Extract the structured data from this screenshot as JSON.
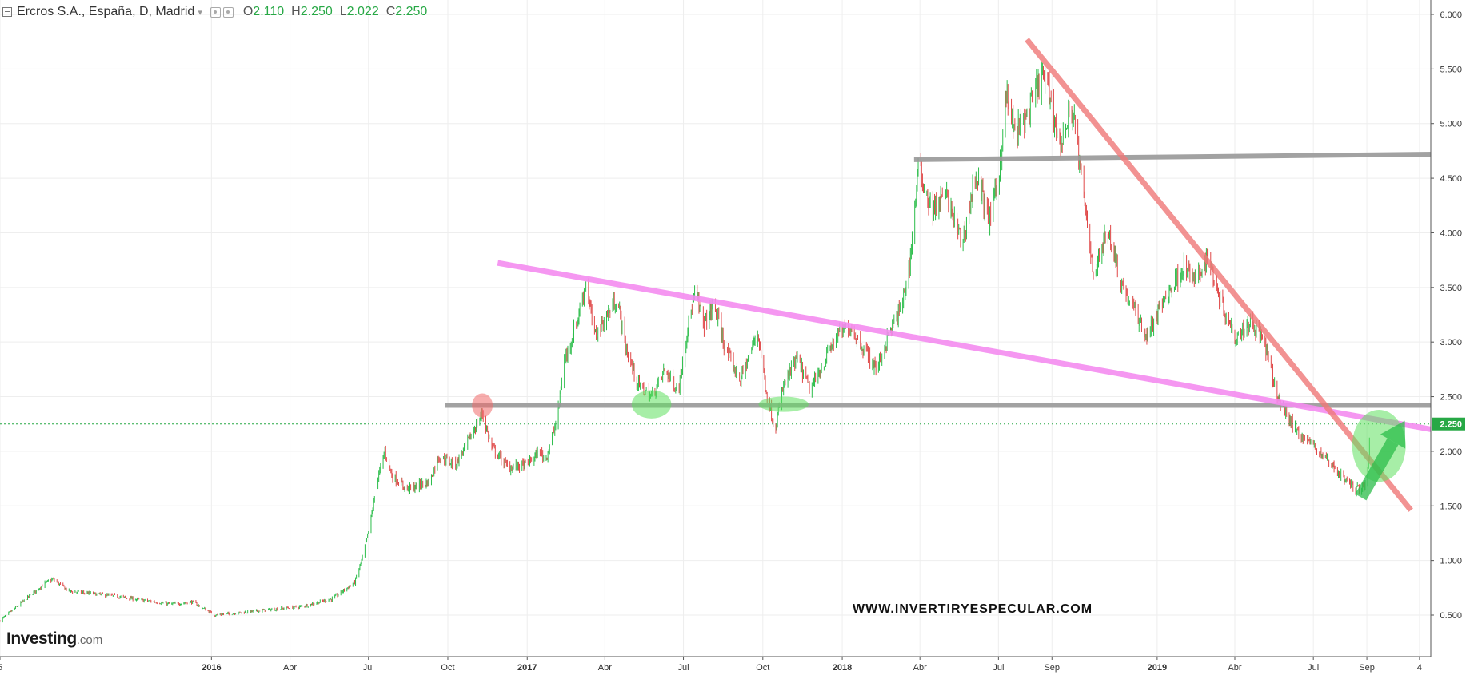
{
  "header": {
    "symbol": "Ercros S.A., España, D, Madrid",
    "open_label": "O",
    "open": "2.110",
    "high_label": "H",
    "high": "2.250",
    "low_label": "L",
    "low": "2.022",
    "close_label": "C",
    "close": "2.250"
  },
  "brand": {
    "name": "Investing",
    "suffix": ".com"
  },
  "watermark": "WWW.INVERTIRYESPECULAR.COM",
  "colors": {
    "up": "#2bbd4a",
    "down": "#e04848",
    "support": "#999999",
    "resistance_top": "#999999",
    "downtrend_main": "#f07878",
    "downtrend_magenta": "#f58cf0",
    "marker_red": "#f06a6a",
    "marker_green": "#5ee05e",
    "price_label_bg": "#27a845"
  },
  "chart_data": {
    "type": "candlestick",
    "title": "Ercros S.A., España, D, Madrid",
    "yaxis": {
      "side": "right",
      "ticks": [
        "6.000",
        "5.500",
        "5.000",
        "4.500",
        "4.000",
        "3.500",
        "3.000",
        "2.500",
        "2.000",
        "1.500",
        "1.000",
        "0.500"
      ],
      "range": [
        0.25,
        6.0
      ]
    },
    "xaxis": {
      "range": [
        "2015-05-01",
        "2019-11-15"
      ],
      "ticks": [
        {
          "label": "5",
          "date": "2015-05-01",
          "bold": false
        },
        {
          "label": "2016",
          "date": "2016-01-01",
          "bold": true
        },
        {
          "label": "Abr",
          "date": "2016-04-01",
          "bold": false
        },
        {
          "label": "Jul",
          "date": "2016-07-01",
          "bold": false
        },
        {
          "label": "Oct",
          "date": "2016-10-01",
          "bold": false
        },
        {
          "label": "2017",
          "date": "2017-01-01",
          "bold": true
        },
        {
          "label": "Abr",
          "date": "2017-04-01",
          "bold": false
        },
        {
          "label": "Jul",
          "date": "2017-07-01",
          "bold": false
        },
        {
          "label": "Oct",
          "date": "2017-10-01",
          "bold": false
        },
        {
          "label": "2018",
          "date": "2018-01-01",
          "bold": true
        },
        {
          "label": "Abr",
          "date": "2018-04-01",
          "bold": false
        },
        {
          "label": "Jul",
          "date": "2018-07-01",
          "bold": false
        },
        {
          "label": "Sep",
          "date": "2018-09-01",
          "bold": false
        },
        {
          "label": "2019",
          "date": "2019-01-01",
          "bold": true
        },
        {
          "label": "Abr",
          "date": "2019-04-01",
          "bold": false
        },
        {
          "label": "Jul",
          "date": "2019-07-01",
          "bold": false
        },
        {
          "label": "Sep",
          "date": "2019-09-01",
          "bold": false
        },
        {
          "label": "4",
          "date": "2019-11-01",
          "bold": false
        }
      ]
    },
    "last_price": 2.25,
    "last_price_label": "2.250",
    "path_note": "daily closes approximated by interpolation between these swing points",
    "price_path": [
      [
        "2015-05-01",
        0.45
      ],
      [
        "2015-06-20",
        0.78
      ],
      [
        "2015-07-01",
        0.83
      ],
      [
        "2015-07-20",
        0.72
      ],
      [
        "2015-09-15",
        0.67
      ],
      [
        "2015-11-15",
        0.6
      ],
      [
        "2015-12-10",
        0.62
      ],
      [
        "2016-01-05",
        0.5
      ],
      [
        "2016-02-01",
        0.52
      ],
      [
        "2016-04-15",
        0.58
      ],
      [
        "2016-05-20",
        0.65
      ],
      [
        "2016-06-01",
        0.72
      ],
      [
        "2016-06-15",
        0.8
      ],
      [
        "2016-06-25",
        1.05
      ],
      [
        "2016-07-02",
        1.3
      ],
      [
        "2016-07-12",
        1.75
      ],
      [
        "2016-07-20",
        2.0
      ],
      [
        "2016-07-28",
        1.78
      ],
      [
        "2016-08-15",
        1.65
      ],
      [
        "2016-09-10",
        1.72
      ],
      [
        "2016-09-20",
        1.95
      ],
      [
        "2016-10-10",
        1.88
      ],
      [
        "2016-10-25",
        2.1
      ],
      [
        "2016-11-10",
        2.35
      ],
      [
        "2016-11-20",
        2.05
      ],
      [
        "2016-12-10",
        1.85
      ],
      [
        "2017-01-01",
        1.88
      ],
      [
        "2017-01-15",
        2.0
      ],
      [
        "2017-01-22",
        1.92
      ],
      [
        "2017-02-05",
        2.3
      ],
      [
        "2017-02-12",
        2.8
      ],
      [
        "2017-02-28",
        3.2
      ],
      [
        "2017-03-10",
        3.55
      ],
      [
        "2017-03-20",
        3.05
      ],
      [
        "2017-04-15",
        3.4
      ],
      [
        "2017-04-25",
        2.95
      ],
      [
        "2017-05-10",
        2.6
      ],
      [
        "2017-05-25",
        2.5
      ],
      [
        "2017-06-10",
        2.75
      ],
      [
        "2017-06-25",
        2.55
      ],
      [
        "2017-07-05",
        3.1
      ],
      [
        "2017-07-15",
        3.45
      ],
      [
        "2017-07-25",
        3.15
      ],
      [
        "2017-08-05",
        3.35
      ],
      [
        "2017-08-20",
        2.9
      ],
      [
        "2017-09-05",
        2.65
      ],
      [
        "2017-09-25",
        3.1
      ],
      [
        "2017-10-05",
        2.55
      ],
      [
        "2017-10-15",
        2.2
      ],
      [
        "2017-10-25",
        2.6
      ],
      [
        "2017-11-10",
        2.85
      ],
      [
        "2017-11-25",
        2.55
      ],
      [
        "2017-12-10",
        2.8
      ],
      [
        "2017-12-25",
        3.05
      ],
      [
        "2018-01-10",
        3.15
      ],
      [
        "2018-01-25",
        2.95
      ],
      [
        "2018-02-10",
        2.75
      ],
      [
        "2018-02-25",
        3.1
      ],
      [
        "2018-03-10",
        3.3
      ],
      [
        "2018-03-20",
        3.7
      ],
      [
        "2018-03-30",
        4.6
      ],
      [
        "2018-04-15",
        4.2
      ],
      [
        "2018-05-01",
        4.35
      ],
      [
        "2018-05-20",
        3.9
      ],
      [
        "2018-06-05",
        4.55
      ],
      [
        "2018-06-20",
        4.1
      ],
      [
        "2018-07-01",
        4.5
      ],
      [
        "2018-07-10",
        5.25
      ],
      [
        "2018-07-20",
        4.9
      ],
      [
        "2018-08-05",
        5.1
      ],
      [
        "2018-08-20",
        5.45
      ],
      [
        "2018-08-30",
        5.25
      ],
      [
        "2018-09-10",
        4.8
      ],
      [
        "2018-09-25",
        5.15
      ],
      [
        "2018-10-08",
        4.3
      ],
      [
        "2018-10-20",
        3.6
      ],
      [
        "2018-11-05",
        4.05
      ],
      [
        "2018-11-20",
        3.55
      ],
      [
        "2018-12-05",
        3.3
      ],
      [
        "2018-12-20",
        3.05
      ],
      [
        "2019-01-10",
        3.4
      ],
      [
        "2019-02-01",
        3.7
      ],
      [
        "2019-02-15",
        3.55
      ],
      [
        "2019-02-28",
        3.8
      ],
      [
        "2019-03-15",
        3.4
      ],
      [
        "2019-04-01",
        3.05
      ],
      [
        "2019-04-20",
        3.2
      ],
      [
        "2019-05-05",
        3.0
      ],
      [
        "2019-05-20",
        2.5
      ],
      [
        "2019-06-10",
        2.2
      ],
      [
        "2019-07-01",
        2.05
      ],
      [
        "2019-07-20",
        1.9
      ],
      [
        "2019-08-05",
        1.75
      ],
      [
        "2019-08-20",
        1.65
      ],
      [
        "2019-09-01",
        1.7
      ],
      [
        "2019-09-05",
        2.25
      ]
    ],
    "annotations": [
      {
        "kind": "line",
        "name": "resistance-top",
        "color": "#999999",
        "p1": [
          "2018-03-28",
          4.67
        ],
        "p2": [
          "2019-11-15",
          4.72
        ]
      },
      {
        "kind": "line",
        "name": "support",
        "color": "#999999",
        "p1": [
          "2016-10-01",
          2.42
        ],
        "p2": [
          "2019-11-15",
          2.42
        ]
      },
      {
        "kind": "line",
        "name": "downtrend-magenta",
        "color": "#f58cf0",
        "p1": [
          "2016-12-01",
          3.72
        ],
        "p2": [
          "2019-11-15",
          2.2
        ]
      },
      {
        "kind": "line",
        "name": "downtrend-main",
        "color": "#f07878",
        "p1": [
          "2018-08-05",
          5.75
        ],
        "p2": [
          "2019-10-20",
          1.48
        ]
      },
      {
        "kind": "ellipse",
        "name": "breakout-marker",
        "color": "#f06a6a",
        "center": [
          "2016-11-10",
          2.42
        ],
        "rx_days": 12,
        "ry_price": 0.11
      },
      {
        "kind": "ellipse",
        "name": "support-touch-1",
        "color": "#5ee05e",
        "center": [
          "2017-05-25",
          2.43
        ],
        "rx_days": 23,
        "ry_price": 0.13
      },
      {
        "kind": "ellipse",
        "name": "support-touch-2",
        "color": "#5ee05e",
        "center": [
          "2017-10-25",
          2.43
        ],
        "rx_days": 29,
        "ry_price": 0.07
      },
      {
        "kind": "ellipse",
        "name": "target-circle",
        "color": "#5ee05e",
        "center": [
          "2019-09-15",
          2.05
        ],
        "rx_days": 31,
        "ry_price": 0.33
      },
      {
        "kind": "arrow",
        "name": "bull-arrow",
        "color": "#2bbd4a",
        "p1": [
          "2019-08-25",
          1.58
        ],
        "p2": [
          "2019-10-15",
          2.28
        ]
      }
    ]
  }
}
